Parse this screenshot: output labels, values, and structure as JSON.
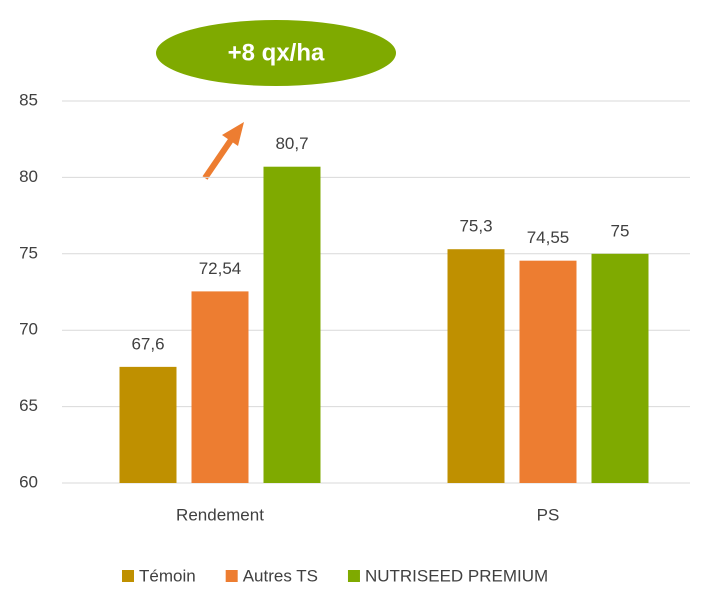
{
  "chart_data": {
    "type": "bar",
    "annotation": "+8 qx/ha",
    "categories": [
      "Rendement",
      "PS"
    ],
    "series": [
      {
        "name": "Témoin",
        "color": "#bf9000",
        "values": [
          67.6,
          75.3
        ],
        "value_labels": [
          "67,6",
          "75,3"
        ]
      },
      {
        "name": "Autres TS",
        "color": "#ed7d31",
        "values": [
          72.54,
          74.55
        ],
        "value_labels": [
          "72,54",
          "74,55"
        ]
      },
      {
        "name": "NUTRISEED PREMIUM",
        "color": "#7faa00",
        "values": [
          80.7,
          75
        ],
        "value_labels": [
          "80,7",
          "75"
        ]
      }
    ],
    "ylim": [
      60,
      85
    ],
    "yticks": [
      60,
      65,
      70,
      75,
      80,
      85
    ],
    "grid": true,
    "legend": "bottom"
  }
}
